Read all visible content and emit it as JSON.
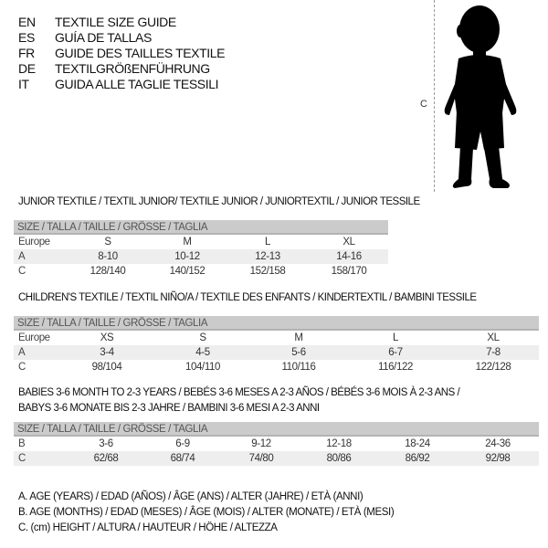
{
  "languages": [
    {
      "code": "EN",
      "label": "TEXTILE SIZE GUIDE"
    },
    {
      "code": "ES",
      "label": "GUÍA DE TALLAS"
    },
    {
      "code": "FR",
      "label": "GUIDE DES TAILLES TEXTILE"
    },
    {
      "code": "DE",
      "label": "TEXTILGRÖßENFÜHRUNG"
    },
    {
      "code": "IT",
      "label": "GUIDA ALLE TAGLIE TESSILI"
    }
  ],
  "figure": {
    "measure_label": "C",
    "icon": "child-silhouette"
  },
  "tables": [
    {
      "title": "JUNIOR TEXTILE / TEXTIL JUNIOR/ TEXTILE JUNIOR / JUNIORTEXTIL / JUNIOR TESSILE",
      "header": "SIZE / TALLA / TAILLE / GRÖSSE / TAGLIA",
      "rows": [
        {
          "label": "Europe",
          "cells": [
            "S",
            "M",
            "L",
            "XL"
          ]
        },
        {
          "label": "A",
          "cells": [
            "8-10",
            "10-12",
            "12-13",
            "14-16"
          ]
        },
        {
          "label": "C",
          "cells": [
            "128/140",
            "140/152",
            "152/158",
            "158/170"
          ]
        }
      ]
    },
    {
      "title": "CHILDREN'S TEXTILE / TEXTIL NIÑO/A / TEXTILE DES ENFANTS / KINDERTEXTIL / BAMBINI TESSILE",
      "header": "SIZE / TALLA / TAILLE / GRÖSSE / TAGLIA",
      "rows": [
        {
          "label": "Europe",
          "cells": [
            "XS",
            "S",
            "M",
            "L",
            "XL"
          ]
        },
        {
          "label": "A",
          "cells": [
            "3-4",
            "4-5",
            "5-6",
            "6-7",
            "7-8"
          ]
        },
        {
          "label": "C",
          "cells": [
            "98/104",
            "104/110",
            "110/116",
            "116/122",
            "122/128"
          ]
        }
      ]
    },
    {
      "title": "BABIES 3-6 MONTH TO 2-3 YEARS / BEBÉS 3-6 MESES A 2-3 AÑOS / BÉBÉS 3-6 MOIS À 2-3 ANS /",
      "title2": "BABYS 3-6 MONATE BIS 2-3 JAHRE / BAMBINI 3-6 MESI A 2-3 ANNI",
      "header": "SIZE / TALLA / TAILLE / GRÖSSE / TAGLIA",
      "rows": [
        {
          "label": "B",
          "cells": [
            "3-6",
            "6-9",
            "9-12",
            "12-18",
            "18-24",
            "24-36"
          ]
        },
        {
          "label": "C",
          "cells": [
            "62/68",
            "68/74",
            "74/80",
            "80/86",
            "86/92",
            "92/98"
          ]
        }
      ]
    }
  ],
  "legend": [
    "A. AGE (YEARS) / EDAD (AÑOS) / ÂGE (ANS) / ALTER (JAHRE) / ETÀ (ANNI)",
    "B. AGE (MONTHS) / EDAD (MESES) / ÂGE (MOIS) / ALTER (MONATE) / ETÀ (MESI)",
    "C. (cm) HEIGHT / ALTURA / HAUTEUR / HÖHE / ALTEZZA"
  ]
}
